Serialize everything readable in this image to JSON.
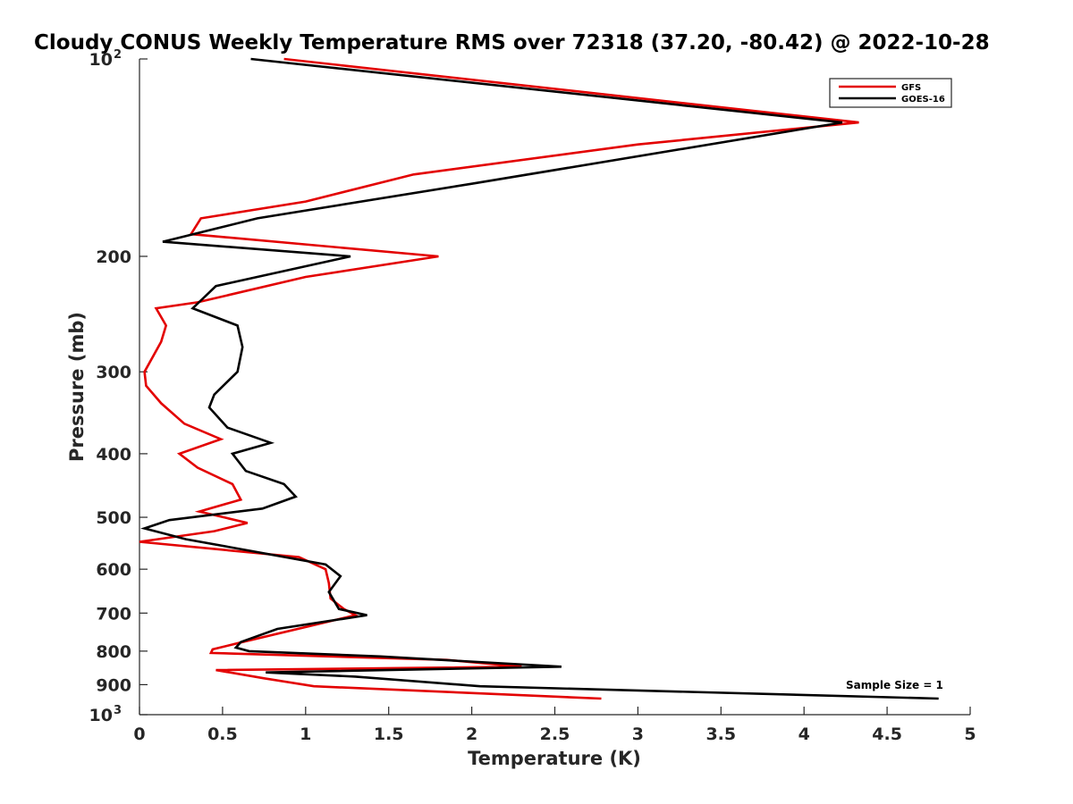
{
  "chart_data": {
    "type": "line",
    "title": "Cloudy CONUS Weekly Temperature RMS over 72318 (37.20, -80.42) @ 2022-10-28",
    "xlabel": "Temperature (K)",
    "ylabel": "Pressure (mb)",
    "xlim": [
      0,
      5
    ],
    "ylim": [
      100,
      1000
    ],
    "y_scale": "log",
    "y_reversed": true,
    "grid": false,
    "legend_position": "top-right",
    "x_ticks": [
      "0",
      "0.5",
      "1",
      "1.5",
      "2",
      "2.5",
      "3",
      "3.5",
      "4",
      "4.5",
      "5"
    ],
    "x_tick_values": [
      0,
      0.5,
      1,
      1.5,
      2,
      2.5,
      3,
      3.5,
      4,
      4.5,
      5
    ],
    "y_ticks": [
      {
        "value": 100,
        "base": "10",
        "exp": "2"
      },
      {
        "value": 200,
        "label": "200"
      },
      {
        "value": 300,
        "label": "300"
      },
      {
        "value": 400,
        "label": "400"
      },
      {
        "value": 500,
        "label": "500"
      },
      {
        "value": 600,
        "label": "600"
      },
      {
        "value": 700,
        "label": "700"
      },
      {
        "value": 800,
        "label": "800"
      },
      {
        "value": 900,
        "label": "900"
      },
      {
        "value": 1000,
        "base": "10",
        "exp": "3"
      }
    ],
    "annotation": "Sample Size = 1",
    "series": [
      {
        "name": "GFS",
        "color": "#e30000",
        "points": [
          [
            0.87,
            100
          ],
          [
            4.33,
            125
          ],
          [
            3.0,
            135
          ],
          [
            1.65,
            150
          ],
          [
            1.0,
            165
          ],
          [
            0.37,
            175
          ],
          [
            0.31,
            185
          ],
          [
            1.8,
            200
          ],
          [
            1.0,
            215
          ],
          [
            0.35,
            235
          ],
          [
            0.1,
            240
          ],
          [
            0.16,
            255
          ],
          [
            0.13,
            270
          ],
          [
            0.03,
            300
          ],
          [
            0.04,
            315
          ],
          [
            0.13,
            335
          ],
          [
            0.27,
            360
          ],
          [
            0.49,
            380
          ],
          [
            0.24,
            400
          ],
          [
            0.35,
            420
          ],
          [
            0.56,
            445
          ],
          [
            0.61,
            470
          ],
          [
            0.36,
            490
          ],
          [
            0.65,
            510
          ],
          [
            0.45,
            525
          ],
          [
            0.0,
            545
          ],
          [
            0.96,
            575
          ],
          [
            1.12,
            600
          ],
          [
            1.14,
            630
          ],
          [
            1.15,
            665
          ],
          [
            1.23,
            690
          ],
          [
            1.3,
            705
          ],
          [
            1.1,
            725
          ],
          [
            0.62,
            775
          ],
          [
            0.44,
            795
          ],
          [
            0.43,
            805
          ],
          [
            1.85,
            825
          ],
          [
            2.3,
            845
          ],
          [
            0.46,
            855
          ],
          [
            0.75,
            880
          ],
          [
            1.05,
            905
          ],
          [
            2.78,
            945
          ]
        ]
      },
      {
        "name": "GOES-16",
        "color": "#000000",
        "points": [
          [
            0.67,
            100
          ],
          [
            4.23,
            125
          ],
          [
            2.0,
            155
          ],
          [
            0.71,
            175
          ],
          [
            0.14,
            190
          ],
          [
            1.27,
            200
          ],
          [
            0.46,
            222
          ],
          [
            0.32,
            240
          ],
          [
            0.59,
            255
          ],
          [
            0.62,
            275
          ],
          [
            0.59,
            300
          ],
          [
            0.45,
            325
          ],
          [
            0.42,
            340
          ],
          [
            0.53,
            365
          ],
          [
            0.79,
            385
          ],
          [
            0.56,
            400
          ],
          [
            0.64,
            425
          ],
          [
            0.87,
            445
          ],
          [
            0.94,
            465
          ],
          [
            0.74,
            485
          ],
          [
            0.18,
            505
          ],
          [
            0.03,
            520
          ],
          [
            0.28,
            540
          ],
          [
            1.12,
            590
          ],
          [
            1.21,
            615
          ],
          [
            1.14,
            650
          ],
          [
            1.2,
            690
          ],
          [
            1.37,
            705
          ],
          [
            0.83,
            740
          ],
          [
            0.61,
            775
          ],
          [
            0.58,
            790
          ],
          [
            0.66,
            800
          ],
          [
            1.45,
            815
          ],
          [
            2.54,
            845
          ],
          [
            0.76,
            862
          ],
          [
            1.3,
            875
          ],
          [
            2.05,
            905
          ],
          [
            4.81,
            945
          ]
        ]
      }
    ]
  }
}
